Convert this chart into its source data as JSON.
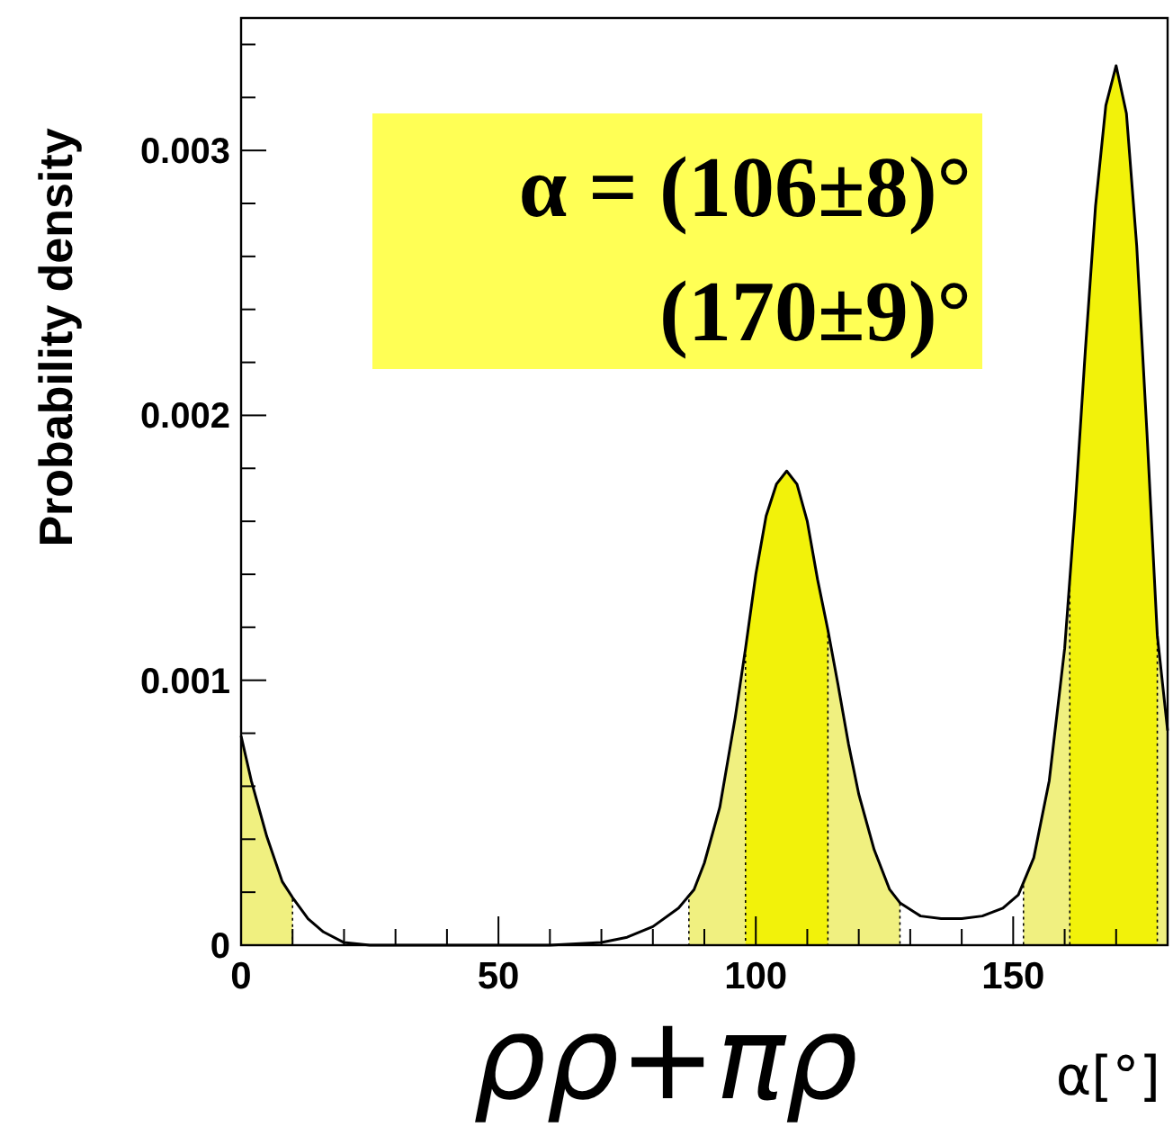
{
  "chart_data": {
    "type": "line",
    "ylabel": "Probability density",
    "xlabel": "α[°]",
    "annotations": [
      "α = (106±8)°",
      "(170±9)°",
      "ρρ+πρ"
    ],
    "x": [
      0,
      2,
      5,
      8,
      10,
      13,
      16,
      20,
      25,
      60,
      70,
      75,
      80,
      85,
      88,
      90,
      93,
      96,
      98,
      100,
      102,
      104,
      106,
      108,
      110,
      112,
      114,
      116,
      118,
      120,
      123,
      126,
      128,
      132,
      136,
      140,
      144,
      148,
      151,
      154,
      157,
      160,
      162,
      164,
      166,
      168,
      170,
      172,
      174,
      176,
      178,
      180
    ],
    "series": [
      {
        "color": "#000000",
        "values": [
          0.00079,
          0.00062,
          0.00041,
          0.00024,
          0.00018,
          0.0001,
          5e-05,
          1e-05,
          0,
          0,
          1e-05,
          3e-05,
          7e-05,
          0.00014,
          0.00021,
          0.00031,
          0.00052,
          0.00086,
          0.00112,
          0.0014,
          0.00162,
          0.00174,
          0.00179,
          0.00174,
          0.0016,
          0.00138,
          0.00119,
          0.00098,
          0.00076,
          0.00057,
          0.00036,
          0.00021,
          0.00016,
          0.00011,
          0.0001,
          0.0001,
          0.00011,
          0.00014,
          0.00019,
          0.00033,
          0.00062,
          0.00112,
          0.00164,
          0.00224,
          0.00279,
          0.00317,
          0.00332,
          0.00314,
          0.00264,
          0.00193,
          0.00117,
          0.00081
        ]
      }
    ],
    "bands": [
      {
        "axis": "x",
        "from": 0,
        "to": 10,
        "color": "#f0f080"
      },
      {
        "axis": "x",
        "from": 87,
        "to": 128,
        "color": "#f0f080"
      },
      {
        "axis": "x",
        "from": 152,
        "to": 180,
        "color": "#f0f080"
      },
      {
        "axis": "x",
        "from": 98,
        "to": 114,
        "color": "#f2f20a"
      },
      {
        "axis": "x",
        "from": 161,
        "to": 178,
        "color": "#f2f20a"
      }
    ],
    "xlim": [
      0,
      180
    ],
    "xticks": [
      0,
      {
        "value": 10,
        "label": null
      },
      {
        "value": 20,
        "label": null
      },
      {
        "value": 30,
        "label": null
      },
      {
        "value": 40,
        "label": null
      },
      50,
      {
        "value": 60,
        "label": null
      },
      {
        "value": 70,
        "label": null
      },
      {
        "value": 80,
        "label": null
      },
      {
        "value": 90,
        "label": null
      },
      100,
      {
        "value": 110,
        "label": null
      },
      {
        "value": 120,
        "label": null
      },
      {
        "value": 130,
        "label": null
      },
      {
        "value": 140,
        "label": null
      },
      150,
      {
        "value": 160,
        "label": null
      },
      {
        "value": 170,
        "label": null
      }
    ],
    "ylim": [
      0,
      0.0035
    ],
    "yticks": [
      0,
      {
        "value": 0.0002,
        "label": null
      },
      {
        "value": 0.0004,
        "label": null
      },
      {
        "value": 0.0006,
        "label": null
      },
      {
        "value": 0.0008,
        "label": null
      },
      0.001,
      {
        "value": 0.0012,
        "label": null
      },
      {
        "value": 0.0014,
        "label": null
      },
      {
        "value": 0.0016,
        "label": null
      },
      {
        "value": 0.0018,
        "label": null
      },
      0.002,
      {
        "value": 0.0022,
        "label": null
      },
      {
        "value": 0.0024,
        "label": null
      },
      {
        "value": 0.0026,
        "label": null
      },
      {
        "value": 0.0028,
        "label": null
      },
      0.003,
      {
        "value": 0.0032,
        "label": null
      },
      {
        "value": 0.0034,
        "label": null
      }
    ],
    "grid": false,
    "marker": "none",
    "line_style": "solid"
  }
}
